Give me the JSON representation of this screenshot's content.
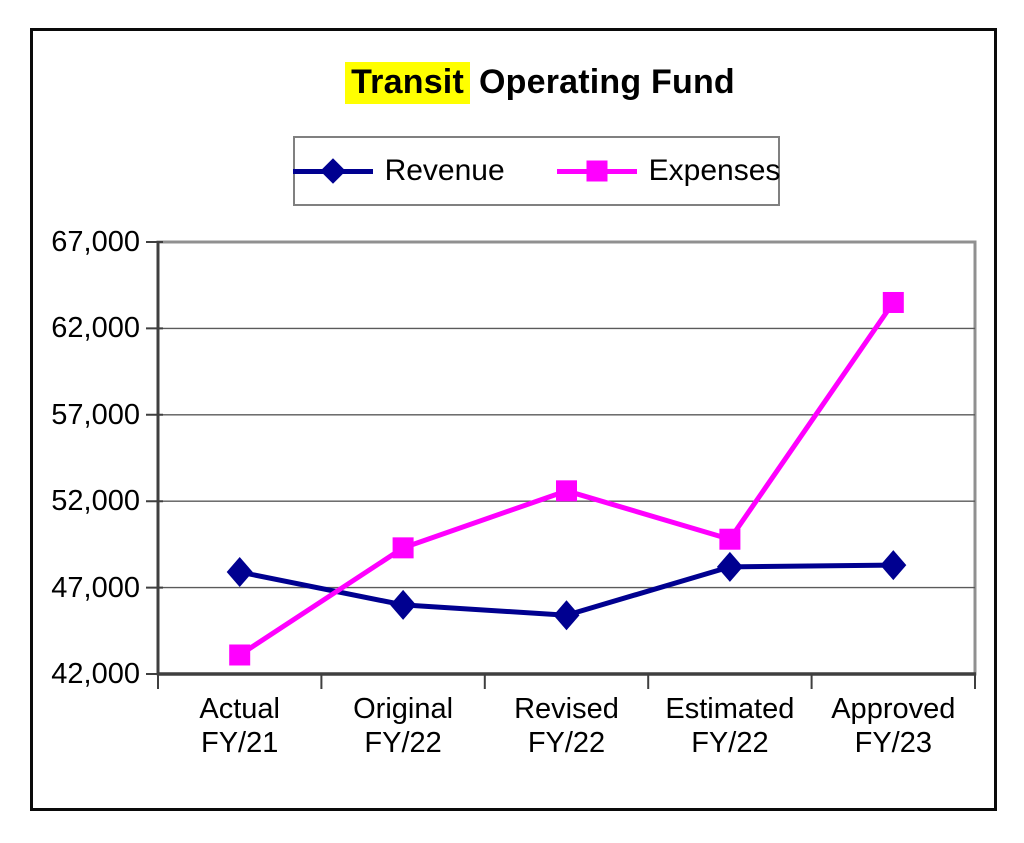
{
  "chart": {
    "title": {
      "highlighted_word": "Transit",
      "rest": "Operating Fund",
      "highlight_color": "#FFFF00"
    }
  },
  "chart_data": {
    "type": "line",
    "title": "Transit Operating Fund",
    "categories": [
      "Actual FY/21",
      "Original FY/22",
      "Revised FY/22",
      "Estimated FY/22",
      "Approved FY/23"
    ],
    "series": [
      {
        "name": "Revenue",
        "color": "#000090",
        "marker": "diamond",
        "values": [
          47900,
          46000,
          45400,
          48200,
          48300
        ]
      },
      {
        "name": "Expenses",
        "color": "#FF00FF",
        "marker": "square",
        "values": [
          43100,
          49300,
          52600,
          49800,
          63500
        ]
      }
    ],
    "ylim": [
      42000,
      67000
    ],
    "yticks": [
      42000,
      47000,
      52000,
      57000,
      62000,
      67000
    ],
    "ytick_labels": [
      "42,000",
      "47,000",
      "52,000",
      "57,000",
      "62,000",
      "67,000"
    ],
    "xlabel": "",
    "ylabel": "",
    "grid": true,
    "legend_position": "top"
  }
}
